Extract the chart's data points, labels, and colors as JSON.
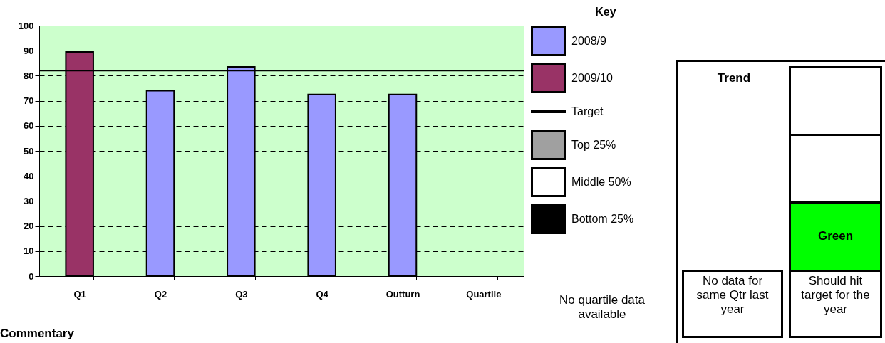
{
  "chart_data": {
    "type": "bar",
    "categories": [
      "Q1",
      "Q2",
      "Q3",
      "Q4",
      "Outturn",
      "Quartile"
    ],
    "series": [
      {
        "name": "2008/9",
        "color": "#9999ff",
        "values": [
          null,
          74,
          83.5,
          72.5,
          72.5,
          null
        ]
      },
      {
        "name": "2009/10",
        "color": "#993366",
        "values": [
          89.5,
          null,
          null,
          null,
          null,
          null
        ]
      },
      {
        "name": "Top 25%",
        "color": "#a0a0a0",
        "values": [
          null,
          null,
          null,
          null,
          null,
          null
        ]
      },
      {
        "name": "Middle 50%",
        "color": "#ffffff",
        "values": [
          null,
          null,
          null,
          null,
          null,
          null
        ]
      },
      {
        "name": "Bottom 25%",
        "color": "#000000",
        "values": [
          null,
          null,
          null,
          null,
          null,
          null
        ]
      }
    ],
    "ylim": [
      0,
      100
    ],
    "yticks": [
      0,
      10,
      20,
      30,
      40,
      50,
      60,
      70,
      80,
      90,
      100
    ],
    "grid": "y",
    "ref_lines": [
      {
        "axis": "y",
        "value": 82,
        "label": "Target",
        "color": "#000000"
      }
    ],
    "legend": "right",
    "legend_title": "Key",
    "annotations": [
      "No quartile data available",
      "Trend",
      "Green",
      "No data for same Qtr last year",
      "Should hit target for the year",
      "Commentary"
    ]
  }
}
